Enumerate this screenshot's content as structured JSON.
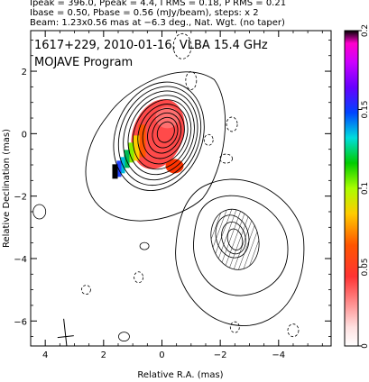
{
  "header": {
    "line1": "Ipeak = 396.0, Ppeak = 4.4, I RMS = 0.18, P RMS = 0.21",
    "line2": "Ibase = 0.50, Pbase = 0.56 (mJy/beam), steps: x 2",
    "line3": "Beam: 1.23x0.56 mas at −6.3 deg., Nat. Wgt. (no taper)"
  },
  "chart_data": {
    "type": "contour",
    "title": "1617+229, 2010-01-16, VLBA 15.4 GHz",
    "subtitle": "MOJAVE Program",
    "xlabel": "Relative R.A. (mas)",
    "ylabel": "Relative Declination (mas)",
    "xlim": [
      4.5,
      -5.8
    ],
    "ylim": [
      -6.8,
      3.3
    ],
    "x_ticks": [
      4,
      2,
      0,
      -2,
      -4
    ],
    "x_tick_labels": [
      "4",
      "2",
      "0",
      "−2",
      "−4"
    ],
    "y_ticks": [
      2,
      0,
      -2,
      -4,
      -6
    ],
    "y_tick_labels": [
      "2",
      "0",
      "−2",
      "−4",
      "−6"
    ],
    "colorbar": {
      "range": [
        0,
        0.2
      ],
      "ticks": [
        0,
        0.05,
        0.1,
        0.15,
        0.2
      ],
      "tick_labels": [
        "0",
        "0.05",
        "0.1",
        "0.15",
        "0.2"
      ],
      "colormap": "rainbow (black top, blue/green mid, red bottom)"
    },
    "core": {
      "ra": 0.0,
      "dec": 0.0,
      "contour_levels_mJy_per_beam": 10
    },
    "jet_component": {
      "ra": -2.7,
      "dec": -3.4,
      "hatched": true
    },
    "frac_pol_region": {
      "center_ra": 0.6,
      "center_dec": -0.3,
      "values_max": 0.2
    },
    "beam": {
      "major_mas": 1.23,
      "minor_mas": 0.56,
      "pa_deg": -6.3,
      "ra": 3.3,
      "dec": -6.5
    },
    "colors": {
      "contour": "#000000",
      "negative_contour": "#000000"
    }
  }
}
